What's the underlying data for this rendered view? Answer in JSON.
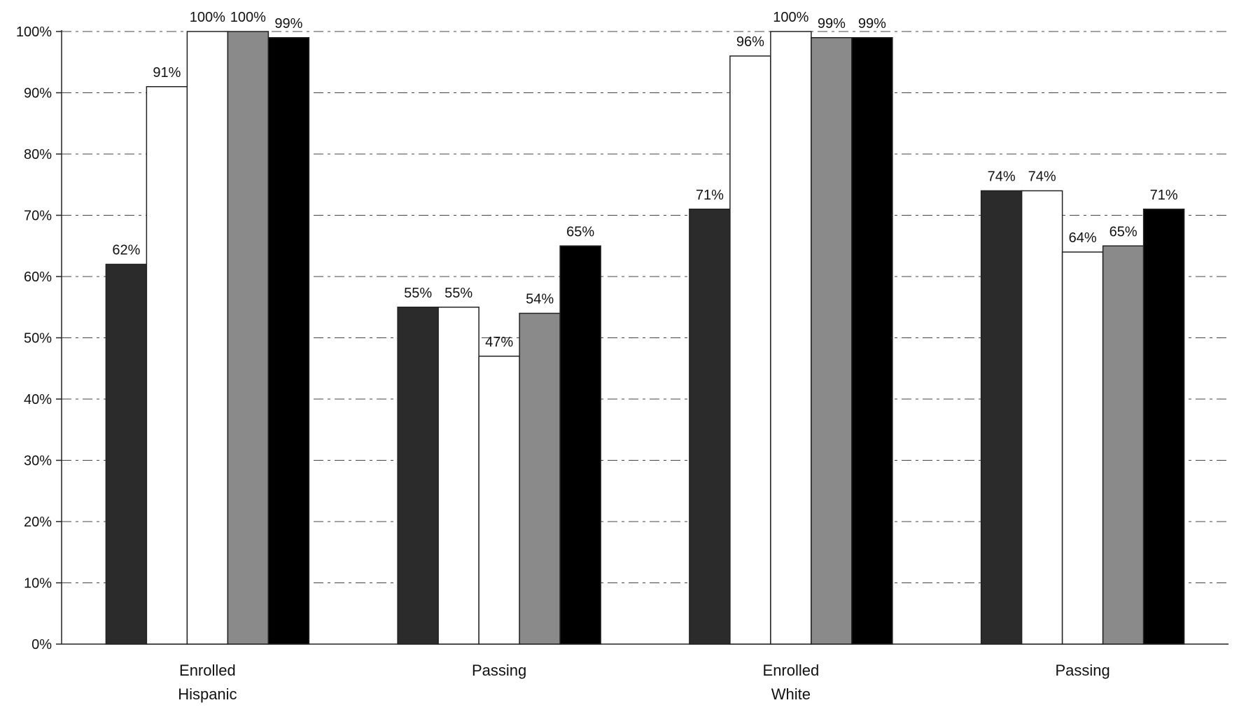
{
  "chart_data": {
    "type": "bar",
    "title": "",
    "xlabel": "",
    "ylabel": "",
    "ylim": [
      0,
      100
    ],
    "y_ticks": [
      0,
      10,
      20,
      30,
      40,
      50,
      60,
      70,
      80,
      90,
      100
    ],
    "y_tick_labels": [
      "0%",
      "10%",
      "20%",
      "30%",
      "40%",
      "50%",
      "60%",
      "70%",
      "80%",
      "90%",
      "100%"
    ],
    "grid": true,
    "legend": "none",
    "groups": [
      {
        "label_lines": [
          "Enrolled",
          "Hispanic"
        ],
        "bars": [
          {
            "value": 62,
            "label": "62%",
            "style": "dark"
          },
          {
            "value": 91,
            "label": "91%",
            "style": "white"
          },
          {
            "value": 100,
            "label": "100%",
            "style": "white"
          },
          {
            "value": 100,
            "label": "100%",
            "style": "gray"
          },
          {
            "value": 99,
            "label": "99%",
            "style": "black"
          }
        ]
      },
      {
        "label_lines": [
          "Passing"
        ],
        "bars": [
          {
            "value": 55,
            "label": "55%",
            "style": "dark"
          },
          {
            "value": 55,
            "label": "55%",
            "style": "white"
          },
          {
            "value": 47,
            "label": "47%",
            "style": "white"
          },
          {
            "value": 54,
            "label": "54%",
            "style": "gray"
          },
          {
            "value": 65,
            "label": "65%",
            "style": "black"
          }
        ]
      },
      {
        "label_lines": [
          "Enrolled",
          "White"
        ],
        "bars": [
          {
            "value": 71,
            "label": "71%",
            "style": "dark"
          },
          {
            "value": 96,
            "label": "96%",
            "style": "white"
          },
          {
            "value": 100,
            "label": "100%",
            "style": "white"
          },
          {
            "value": 99,
            "label": "99%",
            "style": "gray"
          },
          {
            "value": 99,
            "label": "99%",
            "style": "black"
          }
        ]
      },
      {
        "label_lines": [
          "Passing"
        ],
        "bars": [
          {
            "value": 74,
            "label": "74%",
            "style": "dark"
          },
          {
            "value": 74,
            "label": "74%",
            "style": "white"
          },
          {
            "value": 64,
            "label": "64%",
            "style": "white"
          },
          {
            "value": 65,
            "label": "65%",
            "style": "gray"
          },
          {
            "value": 71,
            "label": "71%",
            "style": "black"
          }
        ]
      }
    ],
    "colors": {
      "dark": "#2b2b2b",
      "white": "#ffffff",
      "gray": "#8a8a8a",
      "black": "#000000",
      "grid": "#444444",
      "axis": "#222222"
    }
  }
}
